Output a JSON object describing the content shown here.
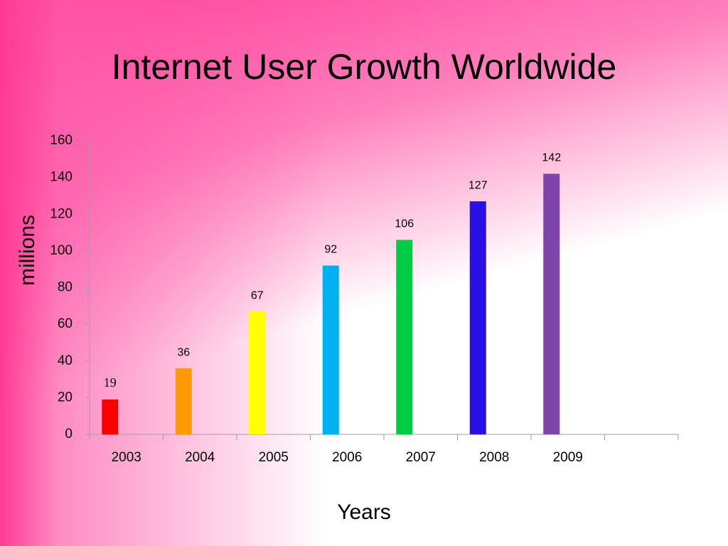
{
  "chart_data": {
    "type": "bar",
    "title": "Internet User Growth Worldwide",
    "y_label": "millions",
    "x_label": "Years",
    "categories": [
      "2003",
      "2004",
      "2005",
      "2006",
      "2007",
      "2008",
      "2009",
      null
    ],
    "values": [
      19,
      36,
      67,
      92,
      106,
      127,
      142,
      null
    ],
    "colors": [
      "#ff0000",
      "#ff9900",
      "#ffff00",
      "#00b0f0",
      "#00cc44",
      "#2a0fe6",
      "#7f44aa",
      null
    ],
    "ylim": [
      0,
      160
    ],
    "yticks": [
      0,
      20,
      40,
      60,
      80,
      100,
      120,
      140,
      160
    ],
    "grid": false
  }
}
